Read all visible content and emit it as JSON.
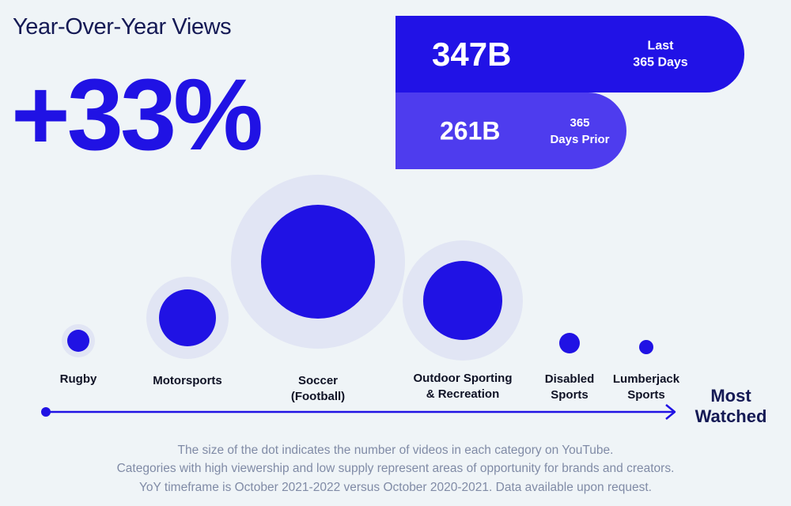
{
  "header": {
    "title": "Year-Over-Year Views",
    "change": "+33%"
  },
  "comparison": {
    "current": {
      "value": "347B",
      "label_line1": "Last",
      "label_line2": "365 Days"
    },
    "prior": {
      "value": "261B",
      "label_line1": "365",
      "label_line2": "Days Prior"
    }
  },
  "colors": {
    "accent": "#2012e4",
    "pill_current": "#2112e6",
    "pill_prior": "#4e3cee",
    "halo": "#e1e5f4",
    "background": "#eff4f7",
    "title_text": "#151a55"
  },
  "axis": {
    "end_label_line1": "Most",
    "end_label_line2": "Watched"
  },
  "chart_data": {
    "type": "scatter",
    "title": "Year-Over-Year Views",
    "xlabel": "Most Watched",
    "ylabel": "",
    "legend": "none",
    "grid": false,
    "categories": [
      "Rugby",
      "Motorsports",
      "Soccer (Football)",
      "Outdoor Sporting & Recreation",
      "Disabled Sports",
      "Lumberjack Sports"
    ],
    "label_lines": [
      [
        "Rugby"
      ],
      [
        "Motorsports"
      ],
      [
        "Soccer",
        "(Football)"
      ],
      [
        "Outdoor Sporting",
        "& Recreation"
      ],
      [
        "Disabled",
        "Sports"
      ],
      [
        "Lumberjack",
        "Sports"
      ]
    ],
    "rank": [
      1,
      2,
      3,
      4,
      5,
      6
    ],
    "bubble_size": [
      14,
      36,
      72,
      50,
      13,
      9
    ],
    "halo_size": [
      21,
      52,
      110,
      76,
      0,
      0
    ]
  },
  "footnotes": [
    "The size of the dot indicates the number of videos in each category on YouTube.",
    "Categories with high viewership and low supply represent areas of opportunity for brands and creators.",
    "YoY timeframe is October 2021-2022 versus October 2020-2021. Data available upon request."
  ]
}
